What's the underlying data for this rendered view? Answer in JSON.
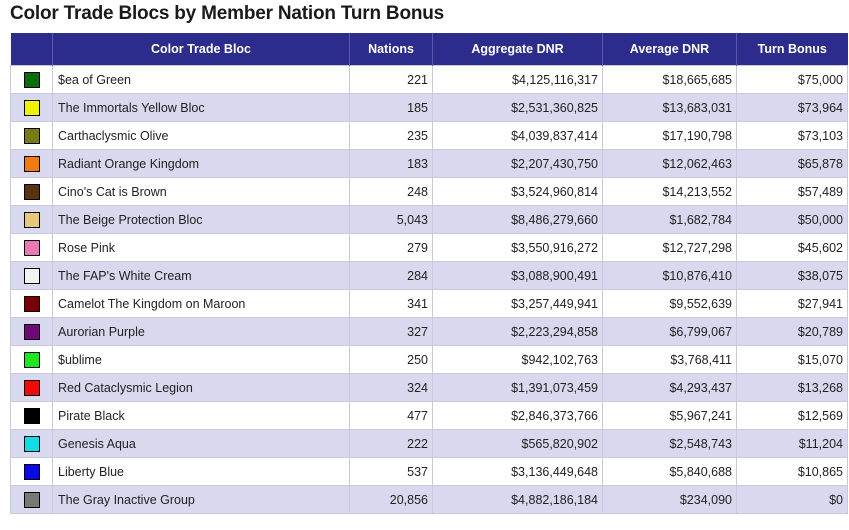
{
  "title": "Color Trade Blocs by Member Nation Turn Bonus",
  "columns": [
    "Color Trade Bloc",
    "Nations",
    "Aggregate DNR",
    "Average DNR",
    "Turn Bonus"
  ],
  "rows": [
    {
      "color": "#0a6b0a",
      "name": "$ea of Green",
      "nations": "221",
      "aggregate": "$4,125,116,317",
      "average": "$18,665,685",
      "bonus": "$75,000"
    },
    {
      "color": "#f0f000",
      "name": "The Immortals Yellow Bloc",
      "nations": "185",
      "aggregate": "$2,531,360,825",
      "average": "$13,683,031",
      "bonus": "$73,964"
    },
    {
      "color": "#7a7a14",
      "name": "Carthaclysmic Olive",
      "nations": "235",
      "aggregate": "$4,039,837,414",
      "average": "$17,190,798",
      "bonus": "$73,103"
    },
    {
      "color": "#f07a14",
      "name": "Radiant Orange Kingdom",
      "nations": "183",
      "aggregate": "$2,207,430,750",
      "average": "$12,062,463",
      "bonus": "$65,878"
    },
    {
      "color": "#5a3210",
      "name": "Cino's Cat is Brown",
      "nations": "248",
      "aggregate": "$3,524,960,814",
      "average": "$14,213,552",
      "bonus": "$57,489"
    },
    {
      "color": "#e6c87a",
      "name": "The Beige Protection Bloc",
      "nations": "5,043",
      "aggregate": "$8,486,279,660",
      "average": "$1,682,784",
      "bonus": "$50,000"
    },
    {
      "color": "#e678b4",
      "name": "Rose Pink",
      "nations": "279",
      "aggregate": "$3,550,916,272",
      "average": "$12,727,298",
      "bonus": "$45,602"
    },
    {
      "color": "#f4f4f4",
      "name": "The FAP's White Cream",
      "nations": "284",
      "aggregate": "$3,088,900,491",
      "average": "$10,876,410",
      "bonus": "$38,075"
    },
    {
      "color": "#780000",
      "name": "Camelot The Kingdom on Maroon",
      "nations": "341",
      "aggregate": "$3,257,449,941",
      "average": "$9,552,639",
      "bonus": "$27,941"
    },
    {
      "color": "#6e0a78",
      "name": "Aurorian Purple",
      "nations": "327",
      "aggregate": "$2,223,294,858",
      "average": "$6,799,067",
      "bonus": "$20,789"
    },
    {
      "color": "#1ee61e",
      "name": "$ublime",
      "nations": "250",
      "aggregate": "$942,102,763",
      "average": "$3,768,411",
      "bonus": "$15,070"
    },
    {
      "color": "#f00a0a",
      "name": "Red Cataclysmic Legion",
      "nations": "324",
      "aggregate": "$1,391,073,459",
      "average": "$4,293,437",
      "bonus": "$13,268"
    },
    {
      "color": "#000000",
      "name": "Pirate Black",
      "nations": "477",
      "aggregate": "$2,846,373,766",
      "average": "$5,967,241",
      "bonus": "$12,569"
    },
    {
      "color": "#14dce6",
      "name": "Genesis Aqua",
      "nations": "222",
      "aggregate": "$565,820,902",
      "average": "$2,548,743",
      "bonus": "$11,204"
    },
    {
      "color": "#0a0ae6",
      "name": "Liberty Blue",
      "nations": "537",
      "aggregate": "$3,136,449,648",
      "average": "$5,840,688",
      "bonus": "$10,865"
    },
    {
      "color": "#787878",
      "name": "The Gray Inactive Group",
      "nations": "20,856",
      "aggregate": "$4,882,186,184",
      "average": "$234,090",
      "bonus": "$0"
    }
  ]
}
